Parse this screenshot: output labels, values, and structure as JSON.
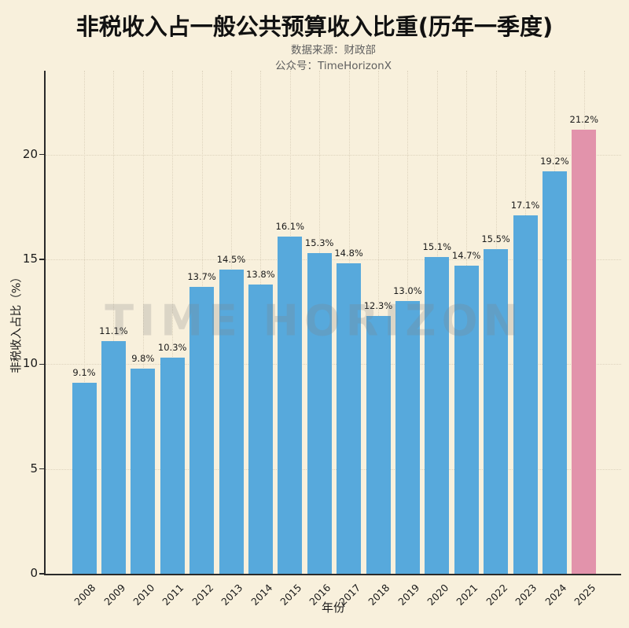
{
  "header": {
    "title": "非税收入占一般公共预算收入比重(历年一季度)",
    "subtitle1": "数据来源：财政部",
    "subtitle2": "公众号：TimeHorizonX"
  },
  "watermark_text": "TIME HORIZON",
  "colors": {
    "background": "#f8f0dc",
    "bar-default": "#57a9dc",
    "bar-highlight": "#e293ab",
    "grid": "#ddd3bd",
    "axis": "#2a2a2a",
    "title": "#111111",
    "subtitle": "#5f5f5f",
    "label": "#1a1a1a",
    "watermark": "#8080803d"
  },
  "chart_data": {
    "type": "bar",
    "title": "非税收入占一般公共预算收入比重(历年一季度)",
    "xlabel": "年份",
    "ylabel": "非税收入占比（%）",
    "categories": [
      "2008",
      "2009",
      "2010",
      "2011",
      "2012",
      "2013",
      "2014",
      "2015",
      "2016",
      "2017",
      "2018",
      "2019",
      "2020",
      "2021",
      "2022",
      "2023",
      "2024",
      "2025"
    ],
    "values": [
      9.1,
      11.1,
      9.8,
      10.3,
      13.7,
      14.5,
      13.8,
      16.1,
      15.3,
      14.8,
      12.3,
      13.0,
      15.1,
      14.7,
      15.5,
      17.1,
      19.2,
      21.2
    ],
    "value_labels": [
      "9.1%",
      "11.1%",
      "9.8%",
      "10.3%",
      "13.7%",
      "14.5%",
      "13.8%",
      "16.1%",
      "15.3%",
      "14.8%",
      "12.3%",
      "13.0%",
      "15.1%",
      "14.7%",
      "15.5%",
      "17.1%",
      "19.2%",
      "21.2%"
    ],
    "highlight_index": 17,
    "yticks": [
      0,
      5,
      10,
      15,
      20
    ],
    "ylim": [
      0,
      24
    ],
    "grid": "dotted-horizontal-and-vertical",
    "legend": "none"
  }
}
